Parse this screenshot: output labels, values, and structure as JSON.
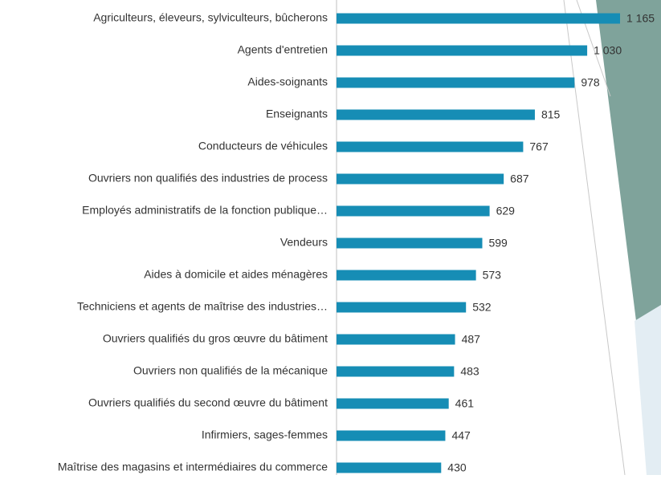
{
  "chart_data": {
    "type": "bar",
    "orientation": "horizontal",
    "categories": [
      "Agriculteurs, éleveurs, sylviculteurs, bûcherons",
      "Agents d'entretien",
      "Aides-soignants",
      "Enseignants",
      "Conducteurs de véhicules",
      "Ouvriers non qualifiés des industries de process",
      "Employés administratifs de la fonction publique…",
      "Vendeurs",
      "Aides à domicile et aides ménagères",
      "Techniciens et agents de maîtrise des industries…",
      "Ouvriers qualifiés du gros œuvre du bâtiment",
      "Ouvriers non qualifiés de la mécanique",
      "Ouvriers qualifiés du second œuvre du bâtiment",
      "Infirmiers, sages-femmes",
      "Maîtrise des magasins et intermédiaires du commerce"
    ],
    "values": [
      1165,
      1030,
      978,
      815,
      767,
      687,
      629,
      599,
      573,
      532,
      487,
      483,
      461,
      447,
      430
    ],
    "value_labels": [
      "1 165",
      "1 030",
      "978",
      "815",
      "767",
      "687",
      "629",
      "599",
      "573",
      "532",
      "487",
      "483",
      "461",
      "447",
      "430"
    ],
    "color": "#168db5"
  }
}
